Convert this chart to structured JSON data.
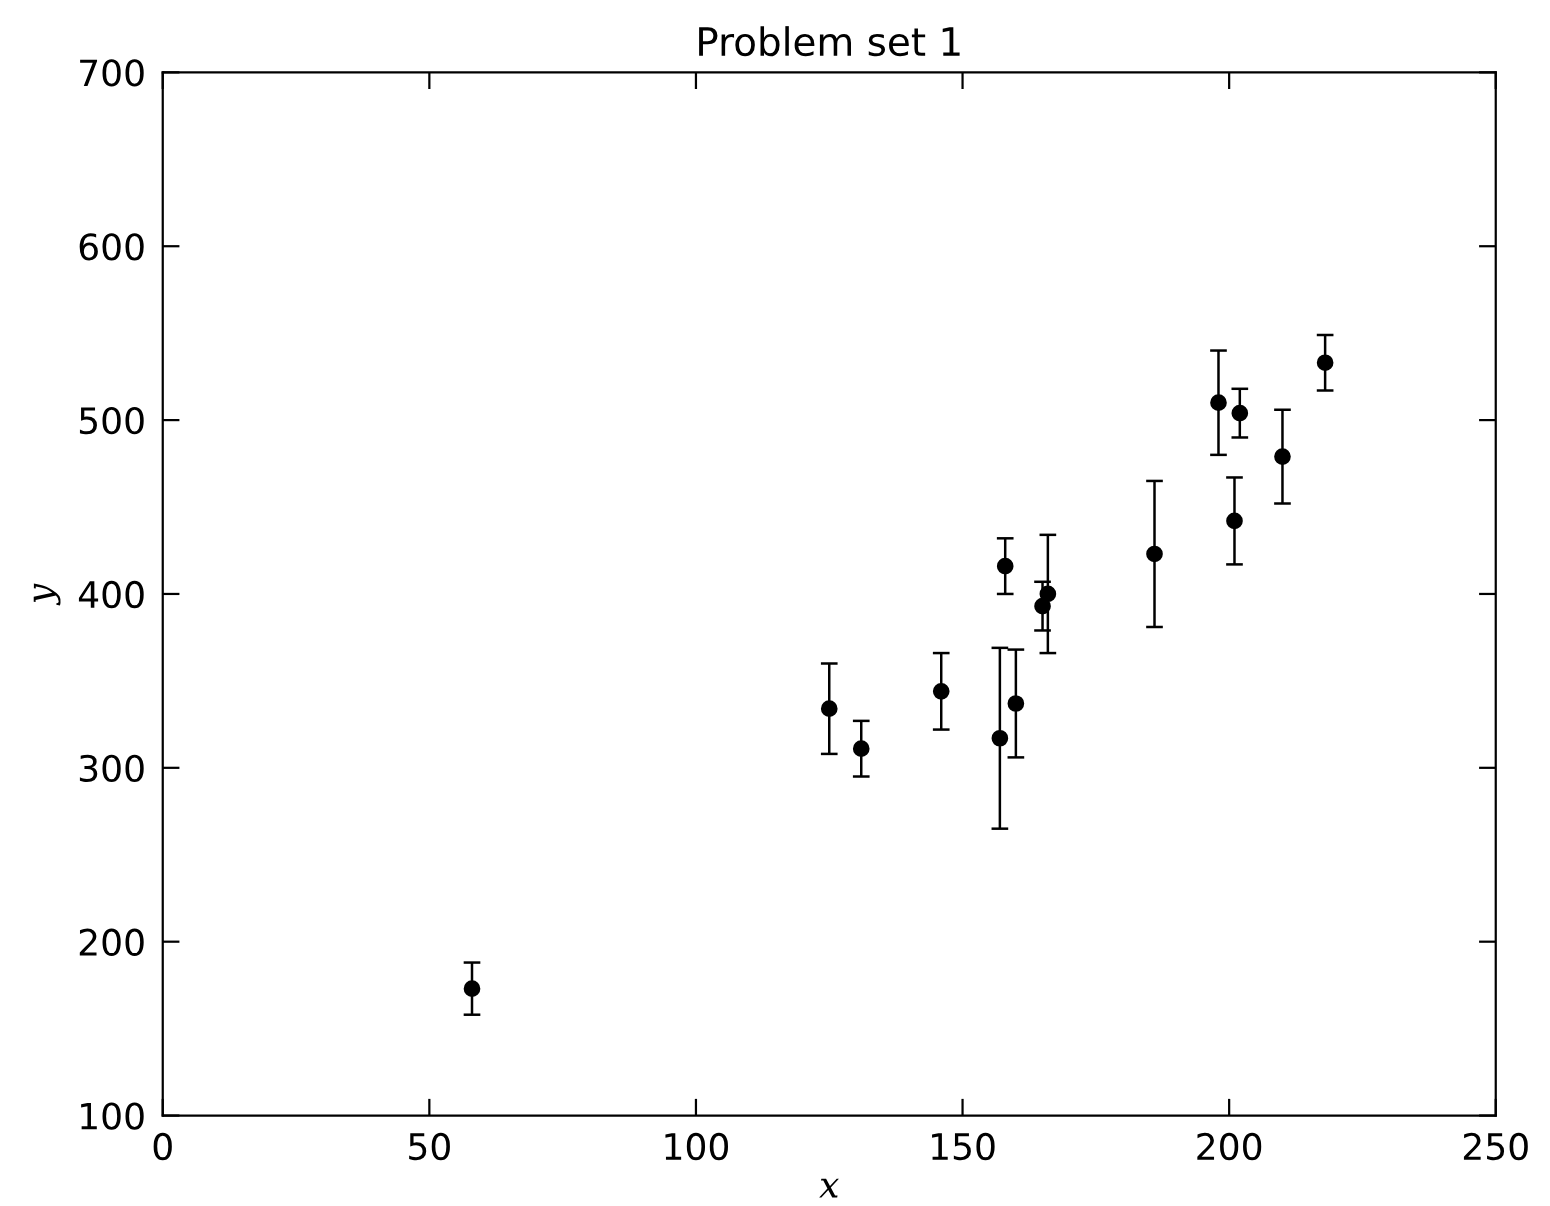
{
  "chart_data": {
    "type": "scatter",
    "title": "Problem set 1",
    "xlabel": "x",
    "ylabel": "y",
    "x": [
      58,
      125,
      131,
      146,
      157,
      158,
      160,
      165,
      166,
      186,
      198,
      201,
      202,
      210,
      218
    ],
    "values": [
      173,
      334,
      311,
      344,
      317,
      416,
      337,
      393,
      400,
      423,
      510,
      442,
      504,
      479,
      533
    ],
    "errors": [
      15,
      26,
      16,
      22,
      52,
      16,
      31,
      14,
      34,
      42,
      30,
      25,
      14,
      27,
      16
    ],
    "color": "#000000",
    "marker": "circle",
    "xlim": [
      0,
      250
    ],
    "ylim": [
      100,
      700
    ],
    "xticks": [
      0,
      50,
      100,
      150,
      200,
      250
    ],
    "yticks": [
      100,
      200,
      300,
      400,
      500,
      600,
      700
    ],
    "grid": false,
    "legend": false
  }
}
